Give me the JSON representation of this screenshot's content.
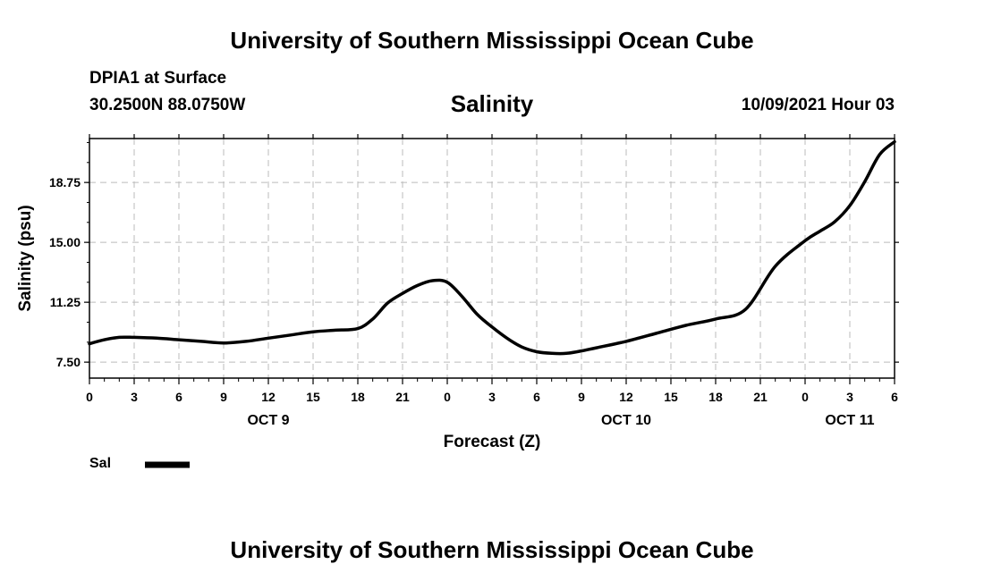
{
  "header": {
    "top_title": "University of Southern Mississippi Ocean Cube",
    "bottom_title": "University of Southern Mississippi Ocean Cube",
    "station": "DPIA1 at Surface",
    "coords": "30.2500N  88.0750W",
    "chart_title": "Salinity",
    "datetime": "10/09/2021 Hour 03"
  },
  "legend": {
    "label": "Sal"
  },
  "colors": {
    "line": "#000000",
    "grid": "#bbbbbb",
    "frame": "#000000"
  },
  "chart_data": {
    "type": "line",
    "title": "Salinity",
    "xlabel": "Forecast (Z)",
    "ylabel": "Salinity (psu)",
    "xlim": [
      0,
      54
    ],
    "ylim": [
      6.5,
      21.5
    ],
    "yticks": [
      7.5,
      11.25,
      15.0,
      18.75
    ],
    "ytick_labels": [
      "7.50",
      "11.25",
      "15.00",
      "18.75"
    ],
    "xticks": [
      0,
      3,
      6,
      9,
      12,
      15,
      18,
      21,
      24,
      27,
      30,
      33,
      36,
      39,
      42,
      45,
      48,
      51,
      54
    ],
    "xtick_labels": [
      "0",
      "3",
      "6",
      "9",
      "12",
      "15",
      "18",
      "21",
      "0",
      "3",
      "6",
      "9",
      "12",
      "15",
      "18",
      "21",
      "0",
      "3",
      "6"
    ],
    "day_labels": [
      {
        "x": 12,
        "label": "OCT 9"
      },
      {
        "x": 36,
        "label": "OCT 10"
      },
      {
        "x": 51,
        "label": "OCT 11"
      }
    ],
    "grid": true,
    "series": [
      {
        "name": "Sal",
        "x": [
          0,
          1,
          2,
          3,
          4.5,
          6,
          7.5,
          9,
          10.5,
          12,
          13.5,
          15,
          16.5,
          18,
          19,
          20,
          21,
          22,
          23,
          24,
          25,
          26,
          27,
          28,
          29,
          30,
          31,
          32,
          33,
          34,
          36,
          38,
          40,
          42,
          44,
          46,
          48,
          49,
          50,
          51,
          52,
          53,
          54
        ],
        "values": [
          8.65,
          8.9,
          9.05,
          9.05,
          9.0,
          8.9,
          8.8,
          8.7,
          8.8,
          9.0,
          9.2,
          9.4,
          9.5,
          9.6,
          10.2,
          11.2,
          11.8,
          12.3,
          12.6,
          12.5,
          11.6,
          10.5,
          9.7,
          9.0,
          8.45,
          8.15,
          8.05,
          8.05,
          8.2,
          8.4,
          8.8,
          9.3,
          9.8,
          10.2,
          10.8,
          13.5,
          15.1,
          15.7,
          16.3,
          17.3,
          18.8,
          20.5,
          21.3
        ]
      }
    ]
  }
}
